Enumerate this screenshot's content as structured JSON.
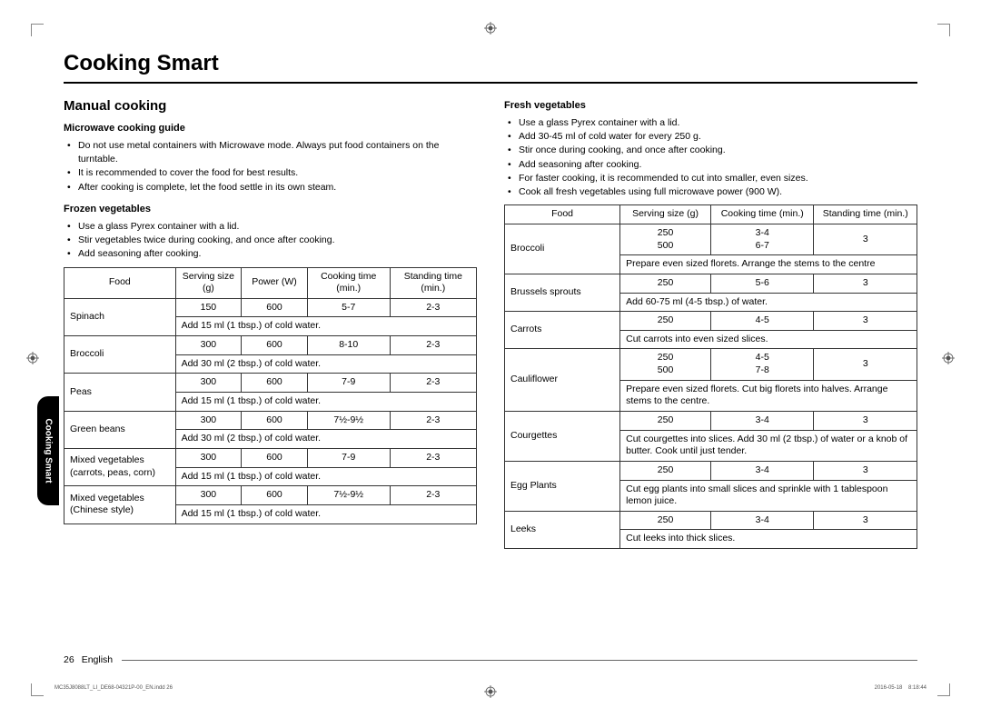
{
  "page": {
    "title": "Cooking Smart",
    "section": "Manual cooking",
    "sidetab": "Cooking Smart",
    "page_number": "26",
    "language": "English",
    "indd_left": "MC35J8088LT_LI_DE68-04321P-00_EN.indd   26",
    "indd_right": "2016-05-18     8:18:44"
  },
  "left": {
    "sub1": "Microwave cooking guide",
    "bullets1": [
      "Do not use metal containers with Microwave mode. Always put food containers on the turntable.",
      "It is recommended to cover the food for best results.",
      "After cooking is complete, let the food settle in its own steam."
    ],
    "sub2": "Frozen vegetables",
    "bullets2": [
      "Use a glass Pyrex container with a lid.",
      "Stir vegetables twice during cooking, and once after cooking.",
      "Add seasoning after cooking."
    ],
    "table": {
      "headers": [
        "Food",
        "Serving size (g)",
        "Power (W)",
        "Cooking time (min.)",
        "Standing time (min.)"
      ],
      "rows": [
        {
          "food": "Spinach",
          "size": "150",
          "power": "600",
          "time": "5-7",
          "stand": "2-3",
          "note": "Add 15 ml (1 tbsp.) of cold water."
        },
        {
          "food": "Broccoli",
          "size": "300",
          "power": "600",
          "time": "8-10",
          "stand": "2-3",
          "note": "Add 30 ml (2 tbsp.) of cold water."
        },
        {
          "food": "Peas",
          "size": "300",
          "power": "600",
          "time": "7-9",
          "stand": "2-3",
          "note": "Add 15 ml (1 tbsp.) of cold water."
        },
        {
          "food": "Green beans",
          "size": "300",
          "power": "600",
          "time": "7½-9½",
          "stand": "2-3",
          "note": "Add 30 ml (2 tbsp.) of cold water."
        },
        {
          "food": "Mixed vegetables (carrots, peas, corn)",
          "size": "300",
          "power": "600",
          "time": "7-9",
          "stand": "2-3",
          "note": "Add 15 ml (1 tbsp.) of cold water."
        },
        {
          "food": "Mixed vegetables (Chinese style)",
          "size": "300",
          "power": "600",
          "time": "7½-9½",
          "stand": "2-3",
          "note": "Add 15 ml (1 tbsp.) of cold water."
        }
      ]
    }
  },
  "right": {
    "sub": "Fresh vegetables",
    "bullets": [
      "Use a glass Pyrex container with a lid.",
      "Add 30-45 ml of cold water for every 250 g.",
      "Stir once during cooking, and once after cooking.",
      "Add seasoning after cooking.",
      "For faster cooking, it is recommended to cut into smaller, even sizes.",
      "Cook all fresh vegetables using full microwave power (900 W)."
    ],
    "table": {
      "headers": [
        "Food",
        "Serving size (g)",
        "Cooking time (min.)",
        "Standing time (min.)"
      ],
      "rows": [
        {
          "food": "Broccoli",
          "size": "250\n500",
          "time": "3-4\n6-7",
          "stand": "3",
          "note": "Prepare even sized florets. Arrange the stems to the centre"
        },
        {
          "food": "Brussels sprouts",
          "size": "250",
          "time": "5-6",
          "stand": "3",
          "note": "Add 60-75 ml (4-5 tbsp.) of water."
        },
        {
          "food": "Carrots",
          "size": "250",
          "time": "4-5",
          "stand": "3",
          "note": "Cut carrots into even sized slices."
        },
        {
          "food": "Cauliflower",
          "size": "250\n500",
          "time": "4-5\n7-8",
          "stand": "3",
          "note": "Prepare even sized florets. Cut big florets into halves. Arrange stems to the centre."
        },
        {
          "food": "Courgettes",
          "size": "250",
          "time": "3-4",
          "stand": "3",
          "note": "Cut courgettes into slices. Add 30 ml (2 tbsp.) of water or a knob of butter. Cook until just tender."
        },
        {
          "food": "Egg Plants",
          "size": "250",
          "time": "3-4",
          "stand": "3",
          "note": "Cut egg plants into small slices and sprinkle with 1 tablespoon lemon juice."
        },
        {
          "food": "Leeks",
          "size": "250",
          "time": "3-4",
          "stand": "3",
          "note": "Cut leeks into thick slices."
        }
      ]
    }
  }
}
